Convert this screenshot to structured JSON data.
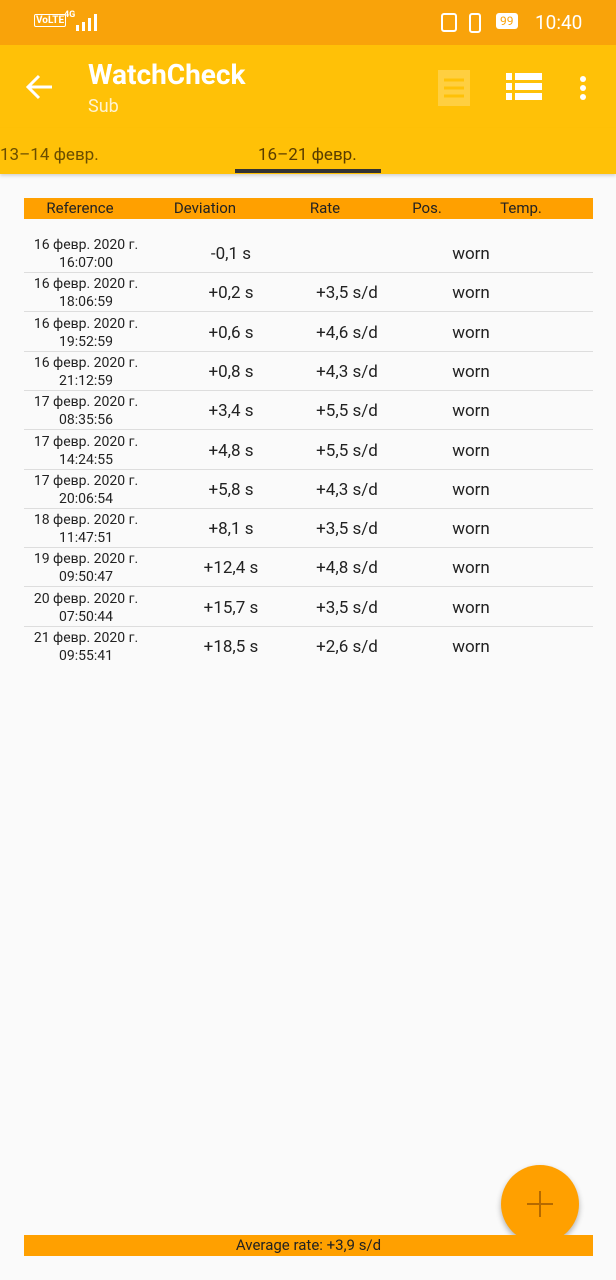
{
  "status_bar": {
    "network": "VoLTE",
    "signal": "4G",
    "battery": "99",
    "time": "10:40"
  },
  "app_bar": {
    "title": "WatchCheck",
    "subtitle": "Sub"
  },
  "tabs": [
    "13–14 февр.",
    "16–21 февр."
  ],
  "table": {
    "headers": [
      "Reference",
      "Deviation",
      "Rate",
      "Pos.",
      "Temp."
    ],
    "rows": [
      {
        "date": "16 февр. 2020 г.",
        "time": "16:07:00",
        "deviation": "-0,1 s",
        "position": "worn"
      },
      {
        "date": "16 февр. 2020 г.",
        "time": "18:06:59",
        "deviation": "+0,2 s",
        "rate": "+3,5 s/d",
        "position": "worn"
      },
      {
        "date": "16 февр. 2020 г.",
        "time": "19:52:59",
        "deviation": "+0,6 s",
        "rate": "+4,6 s/d",
        "position": "worn"
      },
      {
        "date": "16 февр. 2020 г.",
        "time": "21:12:59",
        "deviation": "+0,8 s",
        "rate": "+4,3 s/d",
        "position": "worn"
      },
      {
        "date": "17 февр. 2020 г.",
        "time": "08:35:56",
        "deviation": "+3,4 s",
        "rate": "+5,5 s/d",
        "position": "worn"
      },
      {
        "date": "17 февр. 2020 г.",
        "time": "14:24:55",
        "deviation": "+4,8 s",
        "rate": "+5,5 s/d",
        "position": "worn"
      },
      {
        "date": "17 февр. 2020 г.",
        "time": "20:06:54",
        "deviation": "+5,8 s",
        "rate": "+4,3 s/d",
        "position": "worn"
      },
      {
        "date": "18 февр. 2020 г.",
        "time": "11:47:51",
        "deviation": "+8,1 s",
        "rate": "+3,5 s/d",
        "position": "worn"
      },
      {
        "date": "19 февр. 2020 г.",
        "time": "09:50:47",
        "deviation": "+12,4 s",
        "rate": "+4,8 s/d",
        "position": "worn"
      },
      {
        "date": "20 февр. 2020 г.",
        "time": "07:50:44",
        "deviation": "+15,7 s",
        "rate": "+3,5 s/d",
        "position": "worn"
      },
      {
        "date": "21 февр. 2020 г.",
        "time": "09:55:41",
        "deviation": "+18,5 s",
        "rate": "+2,6 s/d",
        "position": "worn"
      }
    ]
  },
  "footer": "Average rate: +3,9 s/d"
}
